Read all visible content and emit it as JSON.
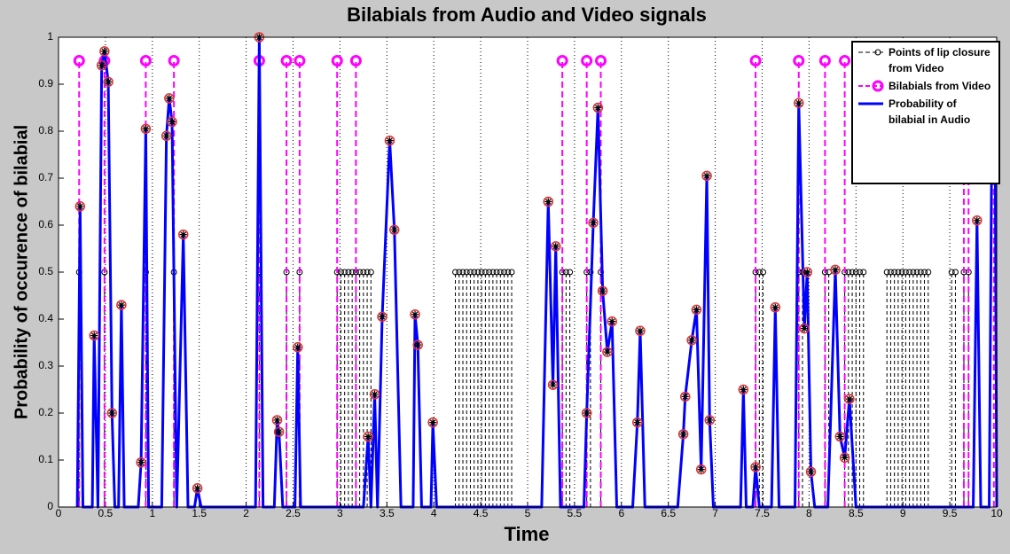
{
  "chart_data": {
    "type": "stem-line",
    "title": "Bilabials from Audio and Video signals",
    "x_label": "Time",
    "y_label": "Probability of occurence of bilabial",
    "xlim": [
      0,
      10
    ],
    "ylim": [
      0,
      1
    ],
    "xticks": [
      0,
      0.5,
      1,
      1.5,
      2,
      2.5,
      3,
      3.5,
      4,
      4.5,
      5,
      5.5,
      6,
      6.5,
      7,
      7.5,
      8,
      8.5,
      9,
      9.5,
      10
    ],
    "yticks": [
      0,
      0.1,
      0.2,
      0.3,
      0.4,
      0.5,
      0.6,
      0.7,
      0.8,
      0.9,
      1
    ],
    "xgrid": true,
    "legend": "upper right",
    "series": [
      {
        "name": "Points of lip closure from Video",
        "color": "#000000",
        "style": "stem-small",
        "x": [
          0.22,
          0.49,
          0.93,
          1.23,
          2.14,
          2.43,
          2.57,
          2.97,
          3.01,
          3.05,
          3.09,
          3.13,
          3.17,
          3.21,
          3.25,
          3.29,
          3.33,
          4.23,
          4.27,
          4.31,
          4.35,
          4.39,
          4.43,
          4.47,
          4.51,
          4.55,
          4.59,
          4.63,
          4.67,
          4.71,
          4.75,
          4.79,
          4.83,
          5.37,
          5.41,
          5.45,
          5.63,
          5.67,
          5.78,
          7.43,
          7.47,
          7.51,
          7.89,
          7.93,
          8.17,
          8.21,
          8.38,
          8.42,
          8.46,
          8.5,
          8.54,
          8.58,
          8.83,
          8.87,
          8.91,
          8.95,
          8.99,
          9.03,
          9.07,
          9.11,
          9.15,
          9.19,
          9.23,
          9.27,
          9.52,
          9.56,
          9.65,
          9.7
        ],
        "values": [
          0.5,
          0.5,
          0.5,
          0.5,
          0.5,
          0.5,
          0.5,
          0.5,
          0.5,
          0.5,
          0.5,
          0.5,
          0.5,
          0.5,
          0.5,
          0.5,
          0.5,
          0.5,
          0.5,
          0.5,
          0.5,
          0.5,
          0.5,
          0.5,
          0.5,
          0.5,
          0.5,
          0.5,
          0.5,
          0.5,
          0.5,
          0.5,
          0.5,
          0.5,
          0.5,
          0.5,
          0.5,
          0.5,
          0.5,
          0.5,
          0.5,
          0.5,
          0.5,
          0.5,
          0.5,
          0.5,
          0.5,
          0.5,
          0.5,
          0.5,
          0.5,
          0.5,
          0.5,
          0.5,
          0.5,
          0.5,
          0.5,
          0.5,
          0.5,
          0.5,
          0.5,
          0.5,
          0.5,
          0.5,
          0.5,
          0.5,
          0.5,
          0.5
        ]
      },
      {
        "name": "Bilabials from Video",
        "color": "#ff00ff",
        "style": "stem-big",
        "x": [
          0.22,
          0.49,
          0.93,
          1.23,
          2.14,
          2.43,
          2.57,
          2.97,
          3.17,
          5.37,
          5.63,
          5.78,
          7.43,
          7.89,
          8.17,
          8.38,
          9.65,
          9.7,
          9.97
        ],
        "values": [
          0.95,
          0.95,
          0.95,
          0.95,
          0.95,
          0.95,
          0.95,
          0.95,
          0.95,
          0.95,
          0.95,
          0.95,
          0.95,
          0.95,
          0.95,
          0.95,
          0.95,
          0.95,
          0.95
        ]
      },
      {
        "name": "Probability of bilabial in Audio",
        "color": "#0000ff",
        "style": "line",
        "x": [
          0.2,
          0.23,
          0.26,
          0.36,
          0.38,
          0.42,
          0.46,
          0.49,
          0.53,
          0.57,
          0.6,
          0.64,
          0.67,
          0.7,
          0.85,
          0.88,
          0.93,
          0.96,
          1.1,
          1.15,
          1.18,
          1.21,
          1.26,
          1.33,
          1.38,
          1.45,
          1.48,
          1.52,
          2.1,
          2.14,
          2.18,
          2.3,
          2.33,
          2.35,
          2.39,
          2.52,
          2.55,
          2.58,
          3.25,
          3.3,
          3.33,
          3.37,
          3.4,
          3.45,
          3.53,
          3.58,
          3.65,
          3.78,
          3.8,
          3.83,
          3.87,
          3.97,
          3.99,
          4.03,
          5.15,
          5.22,
          5.27,
          5.3,
          5.35,
          5.6,
          5.63,
          5.7,
          5.75,
          5.8,
          5.85,
          5.9,
          5.95,
          6.12,
          6.17,
          6.2,
          6.25,
          6.6,
          6.66,
          6.68,
          6.75,
          6.8,
          6.85,
          6.91,
          6.94,
          6.98,
          7.27,
          7.3,
          7.33,
          7.4,
          7.43,
          7.47,
          7.6,
          7.64,
          7.68,
          7.85,
          7.89,
          7.95,
          7.98,
          8.02,
          8.06,
          8.2,
          8.28,
          8.33,
          8.38,
          8.43,
          8.5,
          9.75,
          9.79,
          9.83,
          9.92,
          9.95,
          9.98,
          10
        ],
        "values": [
          0,
          0.64,
          0,
          0,
          0.365,
          0,
          0.94,
          0.97,
          0.905,
          0.2,
          0,
          0,
          0.43,
          0,
          0,
          0.095,
          0.805,
          0,
          0,
          0.79,
          0.87,
          0.82,
          0,
          0.58,
          0,
          0,
          0.04,
          0,
          0,
          1,
          0,
          0,
          0.185,
          0.16,
          0,
          0,
          0.34,
          0,
          0,
          0.15,
          0,
          0.24,
          0,
          0.405,
          0.78,
          0.59,
          0,
          0,
          0.41,
          0.345,
          0,
          0,
          0.18,
          0,
          0,
          0.65,
          0.26,
          0.555,
          0,
          0,
          0.2,
          0.605,
          0.85,
          0.46,
          0.33,
          0.395,
          0,
          0,
          0.18,
          0.375,
          0,
          0,
          0.155,
          0.235,
          0.355,
          0.42,
          0.08,
          0.705,
          0.185,
          0,
          0,
          0.25,
          0,
          0,
          0.085,
          0,
          0,
          0.425,
          0,
          0,
          0.86,
          0.38,
          0.5,
          0.075,
          0,
          0,
          0.505,
          0.15,
          0.105,
          0.23,
          0,
          0,
          0.61,
          0,
          0,
          0.845,
          0.965,
          0
        ]
      }
    ]
  }
}
